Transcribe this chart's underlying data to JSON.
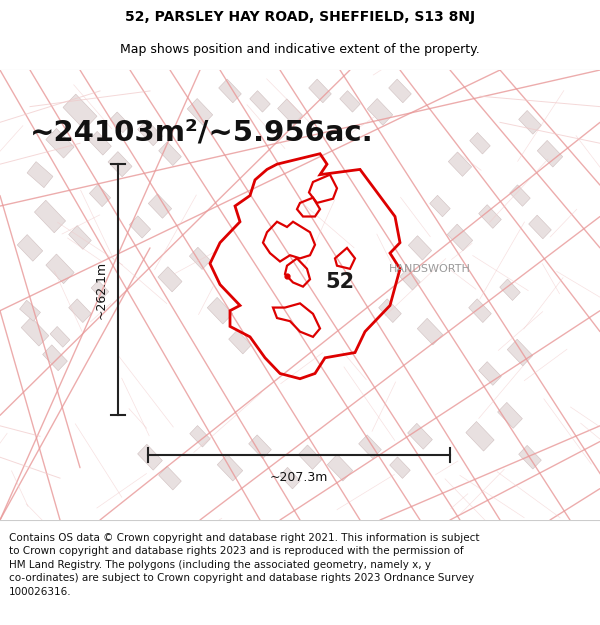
{
  "title_line1": "52, PARSLEY HAY ROAD, SHEFFIELD, S13 8NJ",
  "title_line2": "Map shows position and indicative extent of the property.",
  "area_text": "~24103m²/~5.956ac.",
  "width_label": "~207.3m",
  "height_label": "~262.1m",
  "property_number": "52",
  "handsworth_label": "HANDSWORTH",
  "footer_lines": "Contains OS data © Crown copyright and database right 2021. This information is subject\nto Crown copyright and database rights 2023 and is reproduced with the permission of\nHM Land Registry. The polygons (including the associated geometry, namely x, y\nco-ordinates) are subject to Crown copyright and database rights 2023 Ordnance Survey\n100026316.",
  "map_bg_color": "#f9f4f4",
  "title_bg_color": "#ffffff",
  "footer_bg_color": "#ffffff",
  "border_color": "#cccccc",
  "property_outline_color": "#dd0000",
  "street_color_light": "#f0c8c8",
  "street_color_med": "#e89898",
  "building_color": "#e8e0e0",
  "building_edge": "#d0c0c0",
  "dim_line_color": "#222222",
  "handsworth_color": "#999999",
  "title_fontsize": 10,
  "subtitle_fontsize": 9,
  "area_fontsize": 21,
  "label_fontsize": 9,
  "footer_fontsize": 7.5,
  "number_fontsize": 15
}
